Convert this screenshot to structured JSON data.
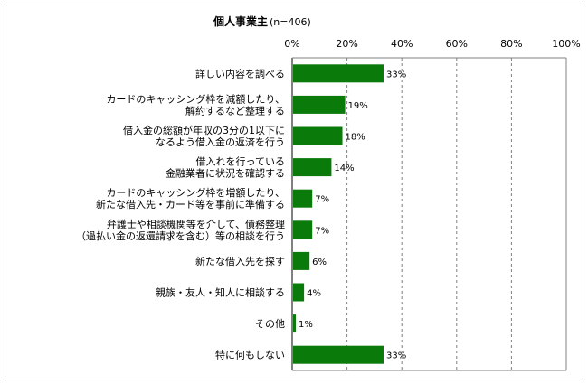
{
  "chart_data": {
    "type": "bar",
    "orientation": "horizontal",
    "title": "個人事業主",
    "subtitle": "(n=406)",
    "xlim": [
      0,
      100
    ],
    "xticks": [
      "0%",
      "20%",
      "40%",
      "60%",
      "80%",
      "100%"
    ],
    "grid": "vertical dashed",
    "bar_color": "#0a7a0a",
    "categories": [
      [
        "詳しい内容を調べる"
      ],
      [
        "カードのキャッシング枠を減額したり、",
        "解約するなど整理する"
      ],
      [
        "借入金の総額が年収の3分の1以下に",
        "なるよう借入金の返済を行う"
      ],
      [
        "借入れを行っている",
        "金融業者に状況を確認する"
      ],
      [
        "カードのキャッシング枠を増額したり、",
        "新たな借入先・カード等を事前に準備する"
      ],
      [
        "弁護士や相談機関等を介して、債務整理",
        "（過払い金の返還請求を含む）等の相談を行う"
      ],
      [
        "新たな借入先を探す"
      ],
      [
        "親族・友人・知人に相談する"
      ],
      [
        "その他"
      ],
      [
        "特に何もしない"
      ]
    ],
    "values": [
      33,
      19,
      18,
      14,
      7,
      7,
      6,
      4,
      1,
      33
    ],
    "value_labels": [
      "33%",
      "19%",
      "18%",
      "14%",
      "7%",
      "7%",
      "6%",
      "4%",
      "1%",
      "33%"
    ]
  }
}
